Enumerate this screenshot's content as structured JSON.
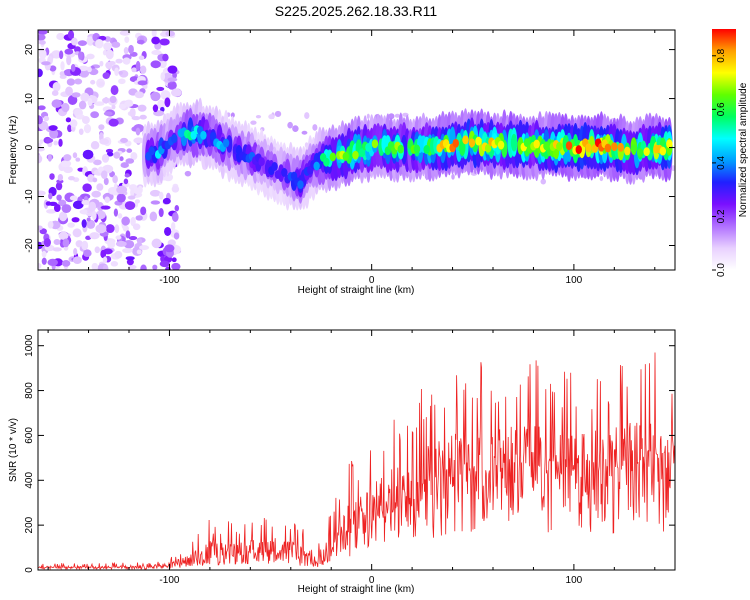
{
  "figure_title": "S225.2025.262.18.33.R11",
  "chart_data": [
    {
      "id": "spectrogram",
      "type": "heatmap",
      "title": "S225.2025.262.18.33.R11",
      "xlabel": "Height of straight line (km)",
      "ylabel": "Frequency (Hz)",
      "xlim": [
        -165,
        150
      ],
      "ylim": [
        -25,
        24
      ],
      "x_ticks": [
        -100,
        0,
        100
      ],
      "y_ticks": [
        -20,
        -10,
        0,
        10,
        20
      ],
      "colorbar": {
        "label": "Normalized spectral amplitude",
        "range": [
          0,
          0.9
        ],
        "ticks": [
          0.0,
          0.2,
          0.4,
          0.6,
          0.8
        ],
        "colors": [
          "#ffffff",
          "#e8d0ff",
          "#b070ff",
          "#7a10ff",
          "#2020ff",
          "#00a0ff",
          "#00ffff",
          "#00ff60",
          "#60ff00",
          "#ffff00",
          "#ffa000",
          "#ff0000"
        ]
      },
      "ridge": {
        "x": [
          -112,
          -106,
          -100,
          -95,
          -90,
          -85,
          -80,
          -75,
          -70,
          -65,
          -60,
          -55,
          -50,
          -45,
          -40,
          -35,
          -30,
          -25,
          -20,
          -10,
          0,
          10,
          20,
          30,
          40,
          50,
          60,
          70,
          80,
          90,
          100,
          110,
          120,
          130,
          140,
          148
        ],
        "y": [
          -1.5,
          -1,
          1,
          2.5,
          3,
          3,
          2,
          1,
          0,
          -1,
          -2,
          -3,
          -4,
          -5,
          -6,
          -7,
          -4,
          -2.5,
          -2,
          -1,
          0,
          0,
          0,
          0,
          0.5,
          1,
          0.5,
          0.5,
          0.5,
          0,
          0,
          0.5,
          0,
          -0.5,
          0,
          0
        ],
        "amp": [
          0.35,
          0.45,
          0.3,
          0.4,
          0.5,
          0.45,
          0.4,
          0.4,
          0.35,
          0.35,
          0.35,
          0.3,
          0.3,
          0.3,
          0.35,
          0.4,
          0.3,
          0.5,
          0.6,
          0.7,
          0.6,
          0.65,
          0.6,
          0.7,
          0.75,
          0.8,
          0.7,
          0.8,
          0.7,
          0.75,
          0.85,
          0.8,
          0.75,
          0.7,
          0.75,
          0.85
        ]
      },
      "noise_regions": [
        {
          "x_range": [
            -165,
            -112
          ],
          "density": "high"
        },
        {
          "x_range": [
            -108,
            -96
          ],
          "density": "medium"
        }
      ]
    },
    {
      "id": "snr",
      "type": "line",
      "xlabel": "Height of straight line (km)",
      "ylabel": "SNR (10 * v/v)",
      "xlim": [
        -165,
        150
      ],
      "ylim": [
        0,
        1070
      ],
      "x_ticks": [
        -100,
        0,
        100
      ],
      "y_ticks": [
        0,
        200,
        400,
        600,
        800,
        1000
      ],
      "color": "#ee2222",
      "envelope": {
        "x": [
          -165,
          -110,
          -100,
          -90,
          -80,
          -70,
          -60,
          -50,
          -40,
          -30,
          -25,
          -20,
          -10,
          0,
          10,
          20,
          30,
          40,
          50,
          60,
          70,
          80,
          90,
          100,
          110,
          120,
          130,
          140,
          150
        ],
        "base": [
          10,
          10,
          15,
          25,
          50,
          60,
          70,
          70,
          60,
          30,
          30,
          80,
          150,
          200,
          250,
          300,
          350,
          380,
          400,
          420,
          420,
          420,
          400,
          400,
          400,
          410,
          420,
          420,
          420
        ],
        "peak": [
          30,
          35,
          55,
          120,
          230,
          220,
          210,
          250,
          220,
          180,
          120,
          350,
          500,
          600,
          700,
          800,
          850,
          900,
          920,
          950,
          1000,
          950,
          900,
          880,
          900,
          950,
          960,
          980,
          940
        ]
      }
    }
  ]
}
